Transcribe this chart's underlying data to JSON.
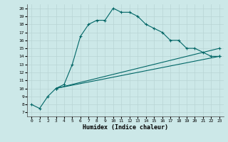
{
  "xlabel": "Humidex (Indice chaleur)",
  "ylabel": "",
  "bg_color": "#cce8e8",
  "grid_color": "#b8d4d4",
  "line_color": "#006666",
  "xlim": [
    -0.5,
    23.5
  ],
  "ylim": [
    6.5,
    20.5
  ],
  "xticks": [
    0,
    1,
    2,
    3,
    4,
    5,
    6,
    7,
    8,
    9,
    10,
    11,
    12,
    13,
    14,
    15,
    16,
    17,
    18,
    19,
    20,
    21,
    22,
    23
  ],
  "yticks": [
    7,
    8,
    9,
    10,
    11,
    12,
    13,
    14,
    15,
    16,
    17,
    18,
    19,
    20
  ],
  "series": [
    {
      "x": [
        0,
        1,
        2,
        3,
        4,
        5,
        6,
        7,
        8,
        9,
        10,
        11,
        12,
        13,
        14,
        15,
        16,
        17,
        18,
        19,
        20,
        21,
        22,
        23
      ],
      "y": [
        8.0,
        7.5,
        9.0,
        10.0,
        10.5,
        13.0,
        16.5,
        18.0,
        18.5,
        18.5,
        20.0,
        19.5,
        19.5,
        19.0,
        18.0,
        17.5,
        17.0,
        16.0,
        16.0,
        15.0,
        15.0,
        14.5,
        14.0,
        14.0
      ],
      "markers": true
    },
    {
      "x": [
        3,
        23
      ],
      "y": [
        10.0,
        15.0
      ],
      "markers": false
    },
    {
      "x": [
        3,
        23
      ],
      "y": [
        10.0,
        14.0
      ],
      "markers": false
    }
  ]
}
